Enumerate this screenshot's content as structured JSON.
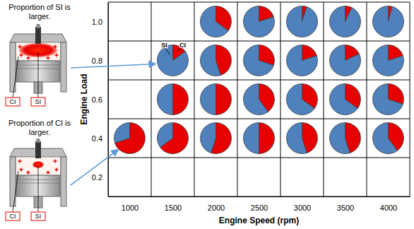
{
  "chart_data": {
    "type": "pie",
    "xlabel": "Engine Speed (rpm)",
    "ylabel": "Engine Load",
    "annotations": [
      "Proportion of SI is larger.",
      "Proportion of CI is larger."
    ],
    "x": [
      2000,
      2500,
      3000,
      3500,
      4000,
      1500,
      2000,
      2500,
      3000,
      3500,
      4000,
      1500,
      2000,
      2500,
      3000,
      3500,
      4000,
      1000,
      1500,
      2000,
      2500,
      3000,
      3500,
      4000
    ],
    "y": [
      1,
      1,
      1,
      1,
      1,
      0.8,
      0.8,
      0.8,
      0.8,
      0.8,
      0.8,
      0.6,
      0.6,
      0.6,
      0.6,
      0.6,
      0.6,
      0.4,
      0.4,
      0.4,
      0.4,
      0.4,
      0.4,
      0.4
    ],
    "series": [
      {
        "name": "SI",
        "color": "#4f81bd",
        "values": [
          65,
          80,
          95,
          93,
          96,
          85,
          55,
          70,
          80,
          82,
          80,
          50,
          50,
          60,
          65,
          65,
          70,
          30,
          35,
          45,
          50,
          55,
          55,
          60
        ]
      },
      {
        "name": "CI",
        "color": "#e60000",
        "values": [
          35,
          20,
          5,
          7,
          4,
          15,
          45,
          30,
          20,
          18,
          20,
          50,
          50,
          40,
          35,
          35,
          30,
          70,
          65,
          55,
          50,
          45,
          45,
          40
        ]
      }
    ],
    "xlim": [
      750,
      4250
    ],
    "xticks": [
      1000,
      1500,
      2000,
      2500,
      3000,
      3500,
      4000
    ],
    "ylim": [
      0.1,
      1.1
    ],
    "yticks": [
      0.2,
      0.4,
      0.6,
      0.8,
      {
        "value": 1,
        "label": "1.0"
      }
    ],
    "grid": true
  }
}
